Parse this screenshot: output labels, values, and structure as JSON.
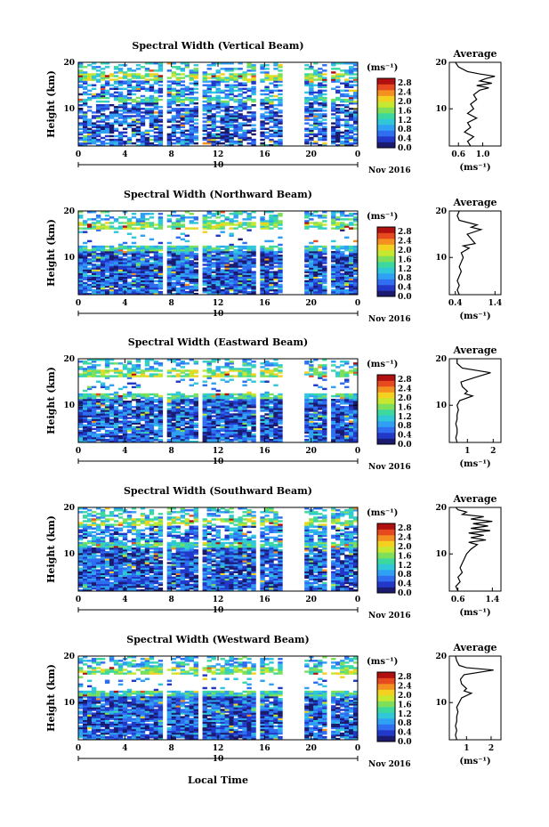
{
  "figure": {
    "xlabel": "Local Time",
    "date_label": "Nov 2016",
    "day_label": "10",
    "height_label": "Height (km)",
    "unit_label": "(ms⁻¹)",
    "average_title": "Average",
    "colorbar_ticks": [
      "0.0",
      "0.4",
      "0.8",
      "1.2",
      "1.6",
      "2.0",
      "2.4",
      "2.8"
    ],
    "colormap": [
      "#1a1a6e",
      "#2238c8",
      "#2f6ef0",
      "#2fa0f4",
      "#30c8d8",
      "#3cd8a0",
      "#7ee05a",
      "#c6e830",
      "#f4d020",
      "#f49020",
      "#e84a20",
      "#b01010"
    ],
    "panel_bg_color": "#3a52e0"
  },
  "chart_data": [
    {
      "type": "heatmap",
      "title": "Spectral Width (Vertical Beam)",
      "xlabel": "Local Time",
      "ylabel": "Height (km)",
      "x_ticks": [
        "0",
        "4",
        "8",
        "12",
        "16",
        "20",
        "0"
      ],
      "y_ticks": [
        "20",
        "10"
      ],
      "xlim": [
        0,
        24
      ],
      "ylim": [
        2,
        20
      ],
      "colorbar": {
        "label": "(ms⁻¹)",
        "ticks": [
          "0.0",
          "0.4",
          "0.8",
          "1.2",
          "1.6",
          "2.0",
          "2.4",
          "2.8"
        ],
        "range": [
          0,
          3.0
        ]
      },
      "data_gaps_hours": [
        [
          5.6,
          5.9
        ],
        [
          7.2,
          7.5
        ],
        [
          10.3,
          10.5
        ],
        [
          15.2,
          15.5
        ],
        [
          17.6,
          19.3
        ],
        [
          21.4,
          21.8
        ]
      ],
      "average_profile": {
        "xlabel": "(ms⁻¹)",
        "x_ticks": [
          "0.6",
          "1.0"
        ],
        "xlim": [
          0.45,
          1.3
        ],
        "y_ticks": [
          "20",
          "10"
        ],
        "ylim": [
          2,
          20
        ],
        "height_km": [
          2,
          3,
          4,
          5,
          6,
          7,
          8,
          9,
          10,
          11,
          12,
          13,
          14,
          14.5,
          15,
          15.5,
          16,
          16.5,
          17,
          17.5,
          18,
          19,
          20
        ],
        "values": [
          0.8,
          0.75,
          0.85,
          0.7,
          0.8,
          0.75,
          0.9,
          0.75,
          0.85,
          0.8,
          0.9,
          0.85,
          0.95,
          1.1,
          0.9,
          1.15,
          0.95,
          1.05,
          1.2,
          0.95,
          0.75,
          0.6,
          0.55
        ]
      }
    },
    {
      "type": "heatmap",
      "title": "Spectral Width (Northward Beam)",
      "xlabel": "Local Time",
      "ylabel": "Height (km)",
      "x_ticks": [
        "0",
        "4",
        "8",
        "12",
        "16",
        "20",
        "0"
      ],
      "y_ticks": [
        "20",
        "10"
      ],
      "xlim": [
        0,
        24
      ],
      "ylim": [
        2,
        20
      ],
      "colorbar": {
        "label": "(ms⁻¹)",
        "ticks": [
          "0.0",
          "0.4",
          "0.8",
          "1.2",
          "1.6",
          "2.0",
          "2.4",
          "2.8"
        ],
        "range": [
          0,
          3.0
        ]
      },
      "data_gaps_hours": [
        [
          5.6,
          5.9
        ],
        [
          7.2,
          7.5
        ],
        [
          10.3,
          10.5
        ],
        [
          15.2,
          15.5
        ],
        [
          17.6,
          19.3
        ],
        [
          21.4,
          21.8
        ]
      ],
      "average_profile": {
        "xlabel": "(ms⁻¹)",
        "x_ticks": [
          "0.4",
          "1.4"
        ],
        "xlim": [
          0.25,
          1.55
        ],
        "y_ticks": [
          "20",
          "10"
        ],
        "ylim": [
          2,
          20
        ],
        "height_km": [
          2,
          3,
          4,
          5,
          6,
          7,
          8,
          9,
          10,
          11,
          12,
          12.5,
          13,
          14,
          15,
          16,
          16.5,
          17,
          18,
          19,
          20
        ],
        "values": [
          0.5,
          0.45,
          0.5,
          0.45,
          0.5,
          0.55,
          0.5,
          0.55,
          0.6,
          0.55,
          0.75,
          0.6,
          0.9,
          0.8,
          0.7,
          1.05,
          0.8,
          0.95,
          0.5,
          0.45,
          0.5
        ]
      }
    },
    {
      "type": "heatmap",
      "title": "Spectral Width (Eastward Beam)",
      "xlabel": "Local Time",
      "ylabel": "Height (km)",
      "x_ticks": [
        "0",
        "4",
        "8",
        "12",
        "16",
        "20",
        "0"
      ],
      "y_ticks": [
        "20",
        "10"
      ],
      "xlim": [
        0,
        24
      ],
      "ylim": [
        2,
        20
      ],
      "colorbar": {
        "label": "(ms⁻¹)",
        "ticks": [
          "0.0",
          "0.4",
          "0.8",
          "1.2",
          "1.6",
          "2.0",
          "2.4",
          "2.8"
        ],
        "range": [
          0,
          3.0
        ]
      },
      "data_gaps_hours": [
        [
          5.6,
          5.9
        ],
        [
          7.2,
          7.5
        ],
        [
          10.3,
          10.5
        ],
        [
          15.2,
          15.5
        ],
        [
          17.6,
          19.3
        ],
        [
          21.4,
          21.8
        ]
      ],
      "average_profile": {
        "xlabel": "(ms⁻¹)",
        "x_ticks": [
          "1",
          "2"
        ],
        "xlim": [
          0.3,
          2.3
        ],
        "y_ticks": [
          "20",
          "10"
        ],
        "ylim": [
          2,
          20
        ],
        "height_km": [
          2,
          3,
          4,
          5,
          6,
          7,
          8,
          9,
          10,
          11,
          12,
          12.5,
          13,
          14,
          15,
          16,
          17,
          18,
          19,
          20
        ],
        "values": [
          0.6,
          0.55,
          0.6,
          0.6,
          0.55,
          0.6,
          0.6,
          0.65,
          0.6,
          0.7,
          1.2,
          0.9,
          1.0,
          0.8,
          0.75,
          1.3,
          1.9,
          0.8,
          0.6,
          0.6
        ]
      }
    },
    {
      "type": "heatmap",
      "title": "Spectral Width (Southward Beam)",
      "xlabel": "Local Time",
      "ylabel": "Height (km)",
      "x_ticks": [
        "0",
        "4",
        "8",
        "12",
        "16",
        "20",
        "0"
      ],
      "y_ticks": [
        "20",
        "10"
      ],
      "xlim": [
        0,
        24
      ],
      "ylim": [
        2,
        20
      ],
      "colorbar": {
        "label": "(ms⁻¹)",
        "ticks": [
          "0.0",
          "0.4",
          "0.8",
          "1.2",
          "1.6",
          "2.0",
          "2.4",
          "2.8"
        ],
        "range": [
          0,
          3.0
        ]
      },
      "data_gaps_hours": [
        [
          4.1,
          4.3
        ],
        [
          5.6,
          5.9
        ],
        [
          7.2,
          7.5
        ],
        [
          10.3,
          10.5
        ],
        [
          15.2,
          15.5
        ],
        [
          17.6,
          19.3
        ],
        [
          21.4,
          21.8
        ]
      ],
      "average_profile": {
        "xlabel": "(ms⁻¹)",
        "x_ticks": [
          "0.6",
          "1.4"
        ],
        "xlim": [
          0.4,
          1.6
        ],
        "y_ticks": [
          "20",
          "10"
        ],
        "ylim": [
          2,
          20
        ],
        "height_km": [
          2,
          3,
          4,
          5,
          6,
          7,
          8,
          9,
          10,
          11,
          12,
          12.5,
          13,
          13.5,
          14,
          14.5,
          15,
          15.5,
          16,
          16.5,
          17,
          17.5,
          18,
          18.5,
          19,
          19.5,
          20
        ],
        "values": [
          0.6,
          0.55,
          0.65,
          0.6,
          0.7,
          0.65,
          0.7,
          0.75,
          0.8,
          0.9,
          1.05,
          0.85,
          1.25,
          0.9,
          1.2,
          0.85,
          1.35,
          0.9,
          1.3,
          0.95,
          1.4,
          0.9,
          1.2,
          0.7,
          0.8,
          0.6,
          0.55
        ]
      }
    },
    {
      "type": "heatmap",
      "title": "Spectral Width (Westward Beam)",
      "xlabel": "Local Time",
      "ylabel": "Height (km)",
      "x_ticks": [
        "0",
        "4",
        "8",
        "12",
        "16",
        "20",
        "0"
      ],
      "y_ticks": [
        "20",
        "10"
      ],
      "xlim": [
        0,
        24
      ],
      "ylim": [
        2,
        20
      ],
      "colorbar": {
        "label": "(ms⁻¹)",
        "ticks": [
          "0.0",
          "0.4",
          "0.8",
          "1.2",
          "1.6",
          "2.0",
          "2.4",
          "2.8"
        ],
        "range": [
          0,
          3.0
        ]
      },
      "data_gaps_hours": [
        [
          5.6,
          5.9
        ],
        [
          7.2,
          7.5
        ],
        [
          10.3,
          10.5
        ],
        [
          15.2,
          15.5
        ],
        [
          17.6,
          19.3
        ],
        [
          21.4,
          21.8
        ]
      ],
      "average_profile": {
        "xlabel": "(ms⁻¹)",
        "x_ticks": [
          "1",
          "2"
        ],
        "xlim": [
          0.3,
          2.4
        ],
        "y_ticks": [
          "20",
          "10"
        ],
        "ylim": [
          2,
          20
        ],
        "height_km": [
          2,
          3,
          4,
          5,
          6,
          7,
          8,
          9,
          10,
          11,
          12,
          12.5,
          13,
          14,
          15,
          16,
          17,
          17.5,
          18,
          19,
          20
        ],
        "values": [
          0.6,
          0.55,
          0.6,
          0.55,
          0.6,
          0.6,
          0.65,
          0.6,
          0.7,
          0.8,
          1.2,
          0.9,
          1.0,
          0.8,
          0.75,
          0.9,
          2.1,
          1.0,
          0.7,
          0.6,
          0.55
        ]
      }
    }
  ]
}
